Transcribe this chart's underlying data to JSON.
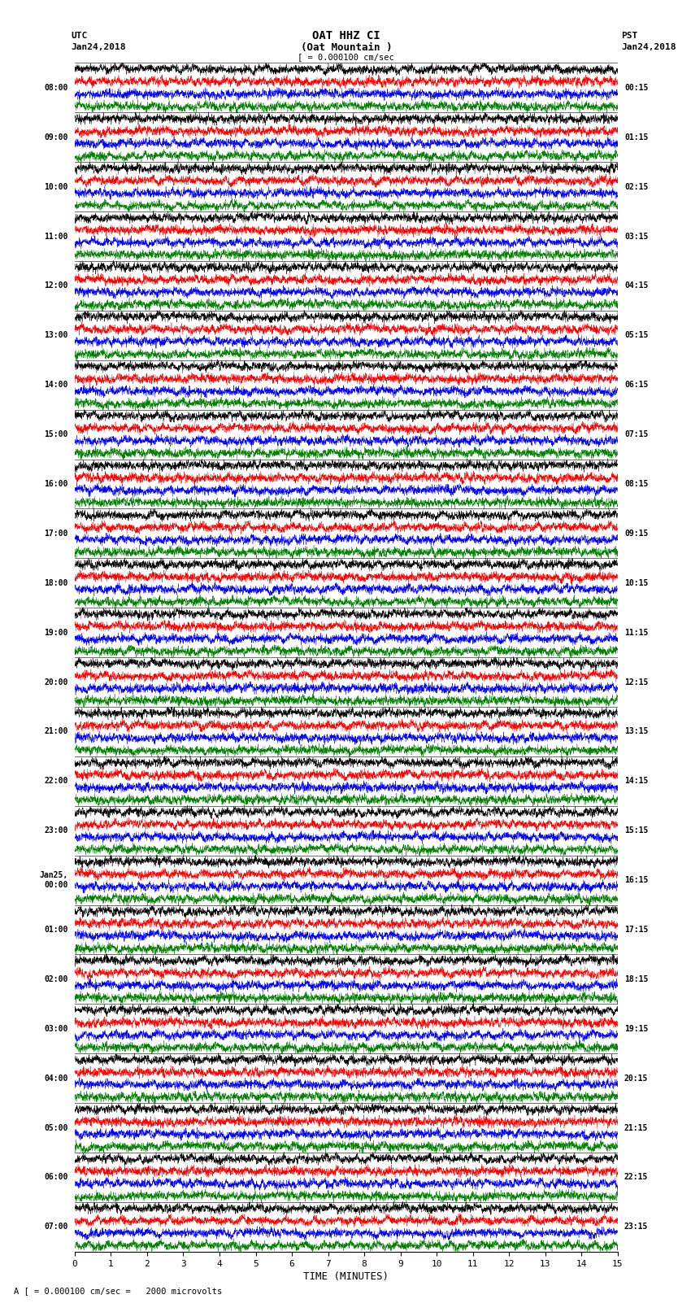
{
  "title_line1": "OAT HHZ CI",
  "title_line2": "(Oat Mountain )",
  "scale_text": "[ = 0.000100 cm/sec",
  "bottom_text": "A [ = 0.000100 cm/sec =   2000 microvolts",
  "utc_label": "UTC",
  "utc_date": "Jan24,2018",
  "pst_label": "PST",
  "pst_date": "Jan24,2018",
  "xlabel": "TIME (MINUTES)",
  "left_times": [
    "08:00",
    "09:00",
    "10:00",
    "11:00",
    "12:00",
    "13:00",
    "14:00",
    "15:00",
    "16:00",
    "17:00",
    "18:00",
    "19:00",
    "20:00",
    "21:00",
    "22:00",
    "23:00",
    "Jan25,\n00:00",
    "01:00",
    "02:00",
    "03:00",
    "04:00",
    "05:00",
    "06:00",
    "07:00"
  ],
  "right_times": [
    "00:15",
    "01:15",
    "02:15",
    "03:15",
    "04:15",
    "05:15",
    "06:15",
    "07:15",
    "08:15",
    "09:15",
    "10:15",
    "11:15",
    "12:15",
    "13:15",
    "14:15",
    "15:15",
    "16:15",
    "17:15",
    "18:15",
    "19:15",
    "20:15",
    "21:15",
    "22:15",
    "23:15"
  ],
  "n_rows": 24,
  "n_traces_per_row": 4,
  "colors": [
    "black",
    "red",
    "blue",
    "green"
  ],
  "fig_width": 8.5,
  "fig_height": 16.13,
  "xlim": [
    0,
    15
  ],
  "xticks": [
    0,
    1,
    2,
    3,
    4,
    5,
    6,
    7,
    8,
    9,
    10,
    11,
    12,
    13,
    14,
    15
  ],
  "background_color": "white",
  "noise_seed": 42,
  "strong_events": [
    {
      "row": 3,
      "trace": 0,
      "strength": 3.5
    },
    {
      "row": 3,
      "trace": 1,
      "strength": 2.5
    },
    {
      "row": 3,
      "trace": 2,
      "strength": 2.0
    },
    {
      "row": 3,
      "trace": 3,
      "strength": 2.0
    },
    {
      "row": 18,
      "trace": 0,
      "strength": 1.5
    },
    {
      "row": 18,
      "trace": 1,
      "strength": 5.0
    },
    {
      "row": 18,
      "trace": 2,
      "strength": 3.0
    },
    {
      "row": 18,
      "trace": 3,
      "strength": 2.0
    }
  ],
  "n_points": 6000,
  "amplitude_fill": 0.92,
  "linewidth": 0.28
}
